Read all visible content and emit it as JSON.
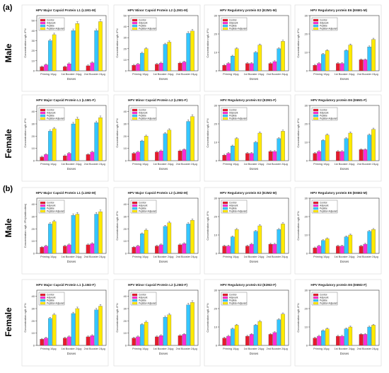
{
  "figure": {
    "panels": [
      {
        "label": "(a)",
        "rows": [
          {
            "side_label": "Male"
          },
          {
            "side_label": "Female"
          }
        ]
      },
      {
        "label": "(b)",
        "rows": [
          {
            "side_label": "Male"
          },
          {
            "side_label": "Female"
          }
        ]
      }
    ],
    "colors": {
      "Control": "#e8192c",
      "Adjuvant": "#ff2bd6",
      "Peptide": "#33c6ff",
      "Peptide+Adjuvant": "#ffea00"
    }
  },
  "chart_data": [
    {
      "type": "bar",
      "title": "HPV Major Capsid Protein L1 (L1M1-M)",
      "ylabel": "Concentration ng/L IFN",
      "xlabel": "Doses",
      "ylim": [
        0,
        55
      ],
      "categories": [
        "Priming 10μg",
        "1st Booster 24μg",
        "2nd Booster 24μg"
      ],
      "series": [
        {
          "name": "Control",
          "values": [
            4,
            4,
            5
          ]
        },
        {
          "name": "Adjuvant",
          "values": [
            6,
            7,
            8
          ]
        },
        {
          "name": "Peptide",
          "values": [
            30,
            40,
            40
          ]
        },
        {
          "name": "Peptide+Adjuvant",
          "values": [
            36,
            47,
            49
          ]
        }
      ]
    },
    {
      "type": "bar",
      "title": "HPV Minor Capsid Protein L2 (L2M1-M)",
      "ylabel": "Concentration ng/L IFN",
      "xlabel": "Doses",
      "ylim": [
        0,
        50
      ],
      "categories": [
        "Priming 10μg",
        "1st Booster 24μg",
        "2nd Booster 24μg"
      ],
      "series": [
        {
          "name": "Control",
          "values": [
            5,
            6,
            7
          ]
        },
        {
          "name": "Adjuvant",
          "values": [
            6,
            7,
            8
          ]
        },
        {
          "name": "Peptide",
          "values": [
            16,
            24,
            34
          ]
        },
        {
          "name": "Peptide+Adjuvant",
          "values": [
            20,
            26,
            36
          ]
        }
      ]
    },
    {
      "type": "bar",
      "title": "HPV Regulatory protein E2 (E2M1-M)",
      "ylabel": "Concentration ng/L IFN",
      "xlabel": "Doses",
      "ylim": [
        0,
        30
      ],
      "categories": [
        "Priming 10μg",
        "1st Booster 24μg",
        "2nd Booster 24μg"
      ],
      "series": [
        {
          "name": "Control",
          "values": [
            3,
            4,
            4
          ]
        },
        {
          "name": "Adjuvant",
          "values": [
            4,
            4,
            5
          ]
        },
        {
          "name": "Peptide",
          "values": [
            8,
            10,
            12
          ]
        },
        {
          "name": "Peptide+Adjuvant",
          "values": [
            12,
            14,
            16
          ]
        }
      ]
    },
    {
      "type": "bar",
      "title": "HPV Regulatory protein E6 (E6M1-M)",
      "ylabel": "Concentration ng/L IFN",
      "xlabel": "Doses",
      "ylim": [
        0,
        30
      ],
      "categories": [
        "Priming 10μg",
        "1st Booster 24μg",
        "2nd Booster 24μg"
      ],
      "series": [
        {
          "name": "Control",
          "values": [
            3,
            4,
            6
          ]
        },
        {
          "name": "Adjuvant",
          "values": [
            4,
            4,
            6
          ]
        },
        {
          "name": "Peptide",
          "values": [
            9,
            11,
            13
          ]
        },
        {
          "name": "Peptide+Adjuvant",
          "values": [
            11,
            14,
            17
          ]
        }
      ]
    },
    {
      "type": "bar",
      "title": "HPV Major Capsid Protein L1 (L1M1-F)",
      "ylabel": "Concentration ng/L IFN",
      "xlabel": "Doses",
      "ylim": [
        0,
        45
      ],
      "categories": [
        "Priming 10μg",
        "1st Booster 24μg",
        "2nd Booster 24μg"
      ],
      "series": [
        {
          "name": "Control",
          "values": [
            3,
            4,
            5
          ]
        },
        {
          "name": "Adjuvant",
          "values": [
            5,
            6,
            7
          ]
        },
        {
          "name": "Peptide",
          "values": [
            24,
            30,
            31
          ]
        },
        {
          "name": "Peptide+Adjuvant",
          "values": [
            26,
            34,
            35
          ]
        }
      ]
    },
    {
      "type": "bar",
      "title": "HPV Minor Capsid Protein L2 (L2M1-F)",
      "ylabel": "Concentration ng/L IFN",
      "xlabel": "Doses",
      "ylim": [
        0,
        45
      ],
      "categories": [
        "Priming 10μg",
        "1st Booster 24μg",
        "2nd Booster 24μg"
      ],
      "series": [
        {
          "name": "Control",
          "values": [
            6,
            7,
            8
          ]
        },
        {
          "name": "Adjuvant",
          "values": [
            7,
            8,
            9
          ]
        },
        {
          "name": "Peptide",
          "values": [
            16,
            22,
            32
          ]
        },
        {
          "name": "Peptide+Adjuvant",
          "values": [
            20,
            25,
            36
          ]
        }
      ]
    },
    {
      "type": "bar",
      "title": "HPV Regulatory protein E2 (E2M1-F)",
      "ylabel": "Concentration ng/L IFN",
      "xlabel": "Doses",
      "ylim": [
        0,
        30
      ],
      "categories": [
        "Priming 10μg",
        "1st Booster 24μg",
        "2nd Booster 24μg"
      ],
      "series": [
        {
          "name": "Control",
          "values": [
            3,
            4,
            5
          ]
        },
        {
          "name": "Adjuvant",
          "values": [
            4,
            4,
            5
          ]
        },
        {
          "name": "Peptide",
          "values": [
            8,
            10,
            12
          ]
        },
        {
          "name": "Peptide+Adjuvant",
          "values": [
            12,
            15,
            16
          ]
        }
      ]
    },
    {
      "type": "bar",
      "title": "HPV Regulatory protein E6 (E6M1-F)",
      "ylabel": "Concentration ng/L IFN",
      "xlabel": "Doses",
      "ylim": [
        0,
        30
      ],
      "categories": [
        "Priming 10μg",
        "1st Booster 24μg",
        "2nd Booster 24μg"
      ],
      "series": [
        {
          "name": "Control",
          "values": [
            4,
            5,
            6
          ]
        },
        {
          "name": "Adjuvant",
          "values": [
            5,
            5,
            6
          ]
        },
        {
          "name": "Peptide",
          "values": [
            11,
            12,
            14
          ]
        },
        {
          "name": "Peptide+Adjuvant",
          "values": [
            14,
            15,
            17
          ]
        }
      ]
    },
    {
      "type": "bar",
      "title": "HPV Major Capsid Protein L1 (L1M2-M)",
      "ylabel": "Concentration ng/L IFN(Antibodies)",
      "xlabel": "Doses",
      "ylim": [
        0,
        45
      ],
      "categories": [
        "Priming 10μg",
        "1st Booster 24μg",
        "2nd Booster 24μg"
      ],
      "series": [
        {
          "name": "Control",
          "values": [
            5,
            6,
            7
          ]
        },
        {
          "name": "Adjuvant",
          "values": [
            6,
            7,
            8
          ]
        },
        {
          "name": "Peptide",
          "values": [
            24,
            31,
            32
          ]
        },
        {
          "name": "Peptide+Adjuvant",
          "values": [
            26,
            32,
            34
          ]
        }
      ]
    },
    {
      "type": "bar",
      "title": "HPV Major Capsid Protein L2 (L2M2-M)",
      "ylabel": "Concentration ng/L IFN",
      "xlabel": "Doses",
      "ylim": [
        0,
        45
      ],
      "categories": [
        "Priming 10μg",
        "1st Booster 24μg",
        "2nd Booster 24μg"
      ],
      "series": [
        {
          "name": "Control",
          "values": [
            5,
            6,
            7
          ]
        },
        {
          "name": "Adjuvant",
          "values": [
            6,
            7,
            8
          ]
        },
        {
          "name": "Peptide",
          "values": [
            16,
            22,
            24
          ]
        },
        {
          "name": "Peptide+Adjuvant",
          "values": [
            19,
            25,
            27
          ]
        }
      ]
    },
    {
      "type": "bar",
      "title": "HPV Regulatory protein E2 (E2M2-M)",
      "ylabel": "Concentration ng/L IFN",
      "xlabel": "Doses",
      "ylim": [
        0,
        30
      ],
      "categories": [
        "Priming 10μg",
        "1st Booster 24μg",
        "2nd Booster 24μg"
      ],
      "series": [
        {
          "name": "Control",
          "values": [
            4,
            4,
            5
          ]
        },
        {
          "name": "Adjuvant",
          "values": [
            4,
            5,
            5
          ]
        },
        {
          "name": "Peptide",
          "values": [
            9,
            12,
            13
          ]
        },
        {
          "name": "Peptide+Adjuvant",
          "values": [
            13,
            15,
            16
          ]
        }
      ]
    },
    {
      "type": "bar",
      "title": "HPV Regulatory protein E6 (E6M2-M)",
      "ylabel": "Concentration ng/L IFN",
      "xlabel": "Doses",
      "ylim": [
        0,
        30
      ],
      "categories": [
        "Priming 10μg",
        "1st Booster 24μg",
        "2nd Booster 24μg"
      ],
      "series": [
        {
          "name": "Control",
          "values": [
            3,
            4,
            4
          ]
        },
        {
          "name": "Adjuvant",
          "values": [
            4,
            4,
            5
          ]
        },
        {
          "name": "Peptide",
          "values": [
            7,
            9,
            12
          ]
        },
        {
          "name": "Peptide+Adjuvant",
          "values": [
            8,
            10,
            13
          ]
        }
      ]
    },
    {
      "type": "bar",
      "title": "HPV Major Capsid Protein L1 (L1M2-F)",
      "ylabel": "Concentration ng/L IFN",
      "xlabel": "Doses",
      "ylim": [
        0,
        45
      ],
      "categories": [
        "Priming 10μg",
        "1st Booster 24μg",
        "2nd Booster 24μg"
      ],
      "series": [
        {
          "name": "Control",
          "values": [
            5,
            6,
            7
          ]
        },
        {
          "name": "Adjuvant",
          "values": [
            6,
            7,
            8
          ]
        },
        {
          "name": "Peptide",
          "values": [
            22,
            26,
            29
          ]
        },
        {
          "name": "Peptide+Adjuvant",
          "values": [
            25,
            30,
            32
          ]
        }
      ]
    },
    {
      "type": "bar",
      "title": "HPV Minor Capsid Protein L2 (L2M2-F)",
      "ylabel": "Concentration ng/L IFN",
      "xlabel": "Doses",
      "ylim": [
        0,
        45
      ],
      "categories": [
        "Priming 10μg",
        "1st Booster 24μg",
        "2nd Booster 24μg"
      ],
      "series": [
        {
          "name": "Control",
          "values": [
            6,
            7,
            8
          ]
        },
        {
          "name": "Adjuvant",
          "values": [
            7,
            8,
            9
          ]
        },
        {
          "name": "Peptide",
          "values": [
            17,
            23,
            33
          ]
        },
        {
          "name": "Peptide+Adjuvant",
          "values": [
            19,
            25,
            35
          ]
        }
      ]
    },
    {
      "type": "bar",
      "title": "HPV Regulatory protein E2 (E2M2-F)",
      "ylabel": "Concentration ng/L IFN",
      "xlabel": "Doses",
      "ylim": [
        0,
        30
      ],
      "categories": [
        "Priming 10μg",
        "1st Booster 24μg",
        "2nd Booster 24μg"
      ],
      "series": [
        {
          "name": "Control",
          "values": [
            4,
            5,
            6
          ]
        },
        {
          "name": "Adjuvant",
          "values": [
            5,
            6,
            7
          ]
        },
        {
          "name": "Peptide",
          "values": [
            9,
            11,
            14
          ]
        },
        {
          "name": "Peptide+Adjuvant",
          "values": [
            11,
            13,
            17
          ]
        }
      ]
    },
    {
      "type": "bar",
      "title": "HPV Regulatory protein E6 (E6M2-F)",
      "ylabel": "Concentration ng/L IFN",
      "xlabel": "Doses",
      "ylim": [
        0,
        30
      ],
      "categories": [
        "Priming 10μg",
        "1st Booster 24μg",
        "2nd Booster 24μg"
      ],
      "series": [
        {
          "name": "Control",
          "values": [
            4,
            5,
            6
          ]
        },
        {
          "name": "Adjuvant",
          "values": [
            5,
            5,
            6
          ]
        },
        {
          "name": "Peptide",
          "values": [
            8,
            9,
            10
          ]
        },
        {
          "name": "Peptide+Adjuvant",
          "values": [
            9,
            10,
            11
          ]
        }
      ]
    }
  ]
}
